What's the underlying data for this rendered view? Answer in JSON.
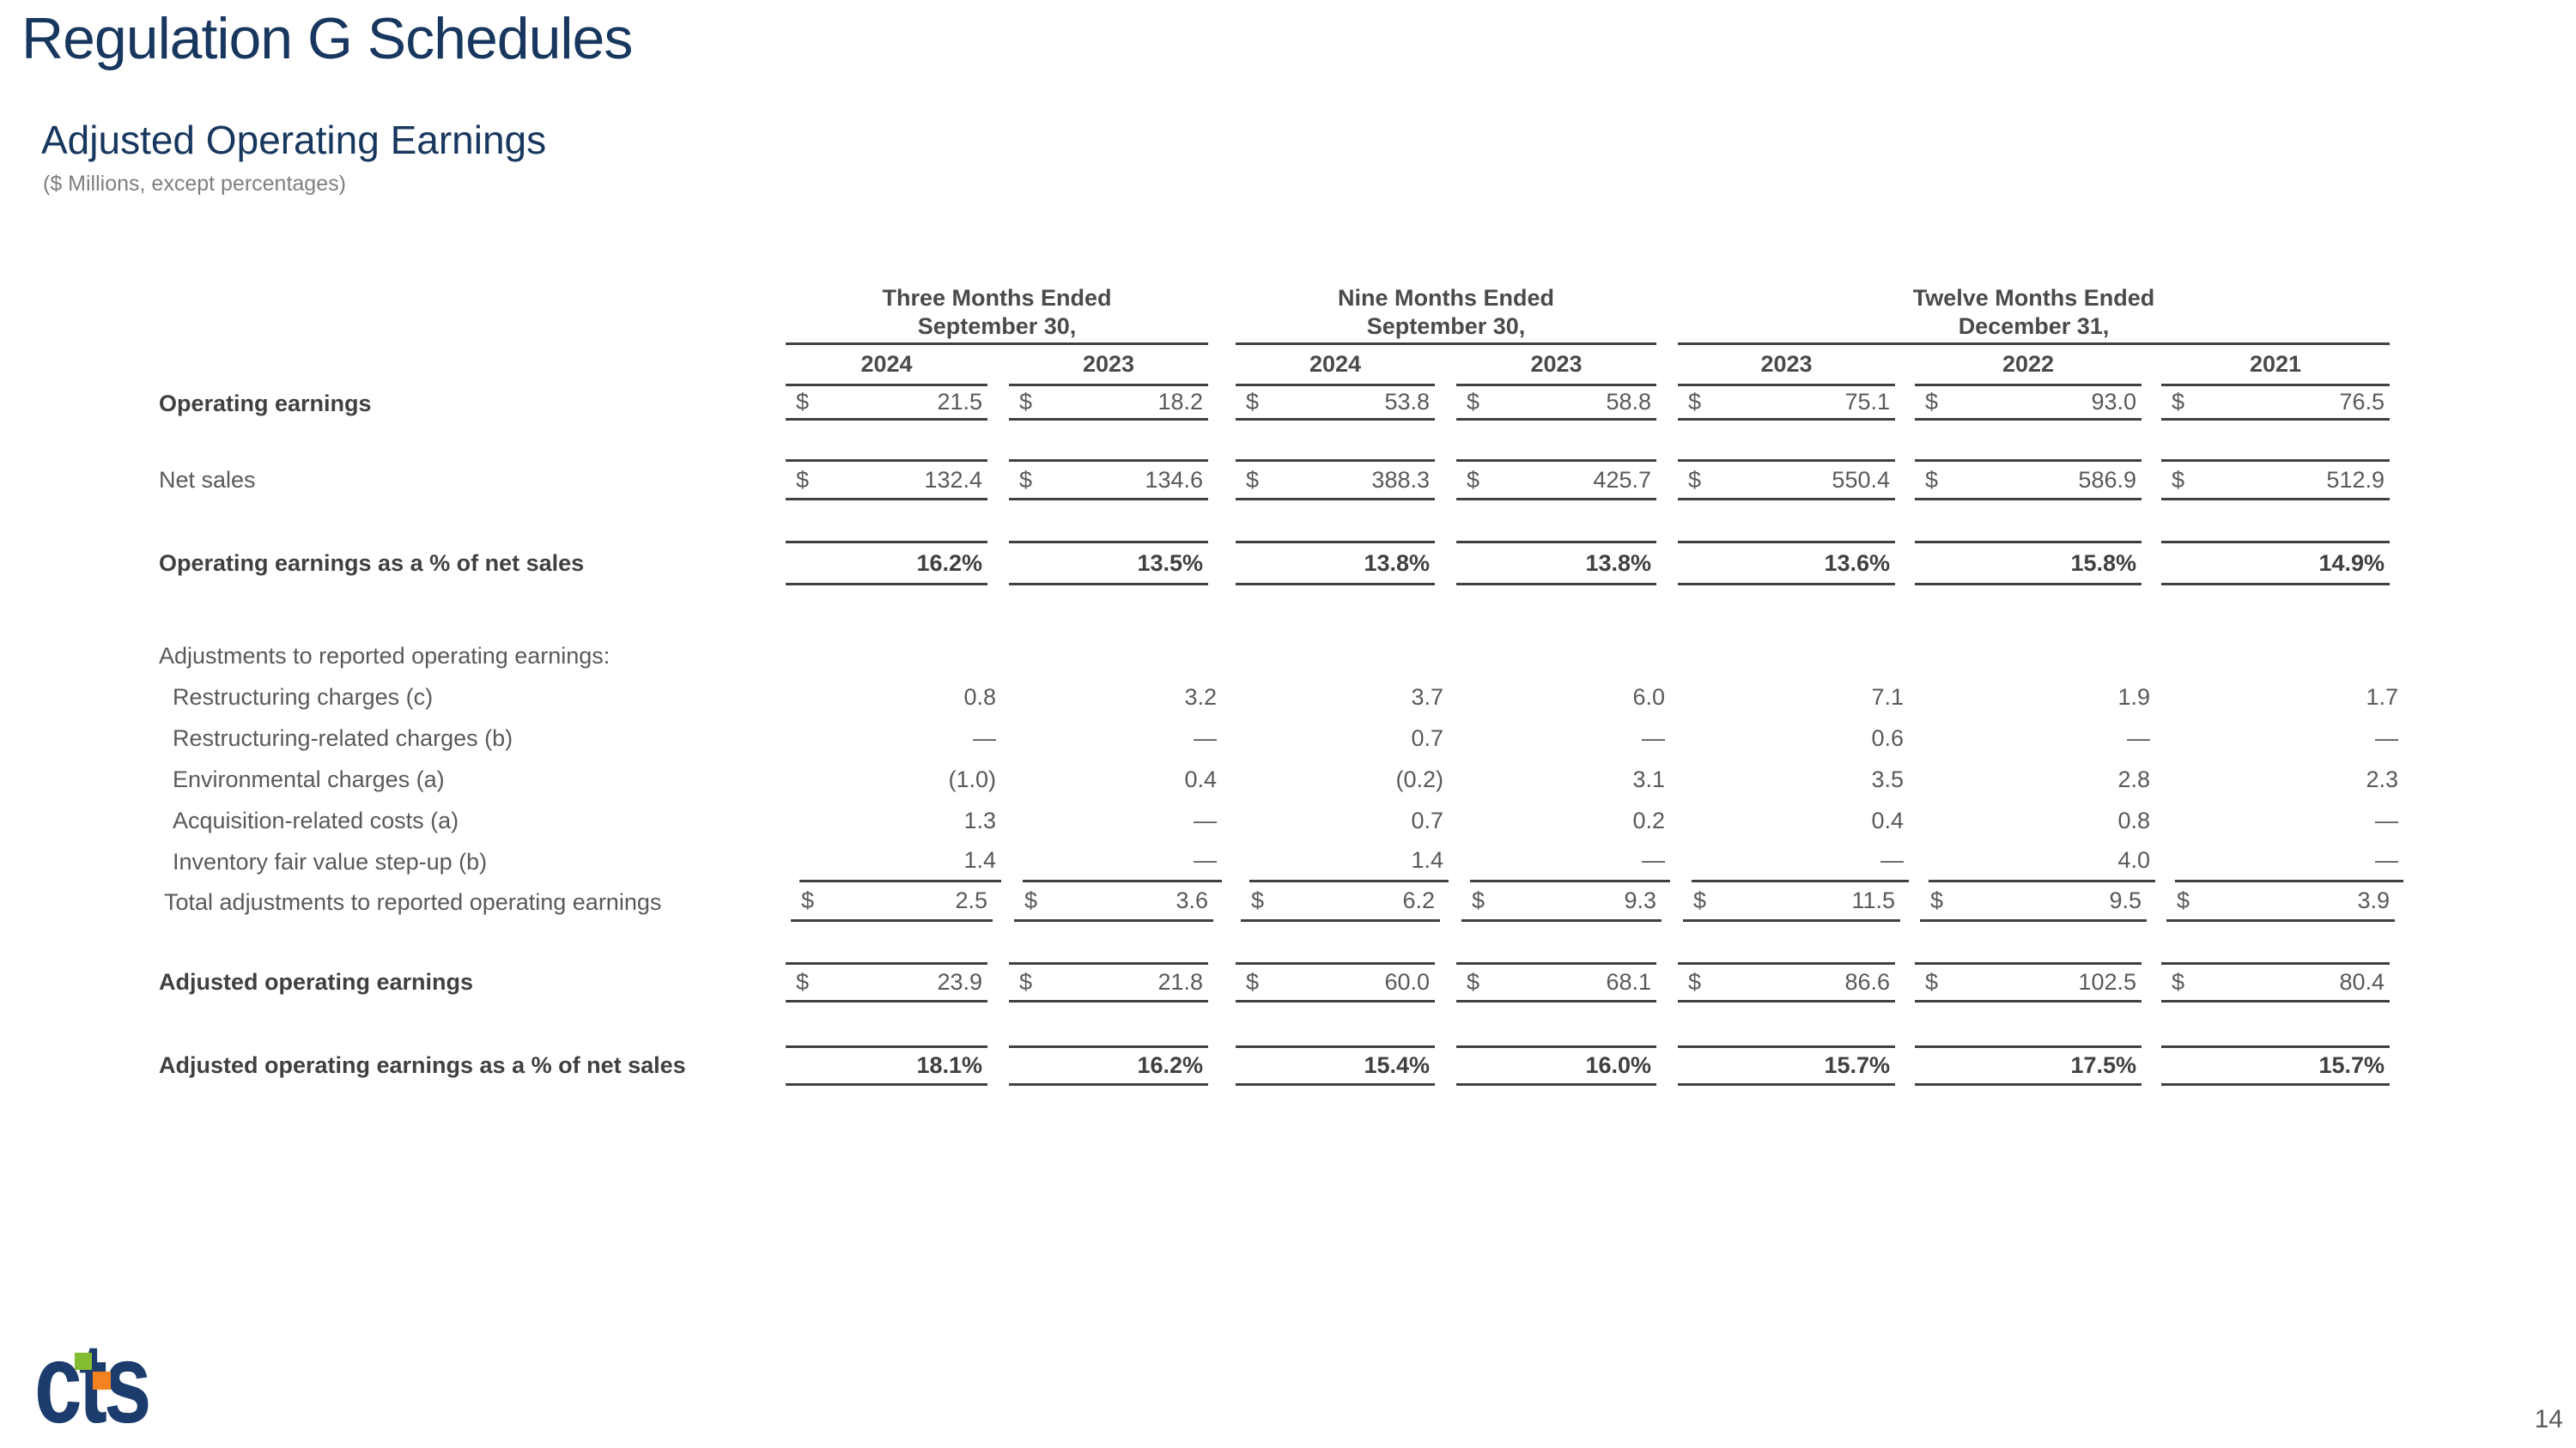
{
  "slide": {
    "title": "Regulation G Schedules",
    "subtitle": "Adjusted Operating Earnings",
    "units_note": "($ Millions, except percentages)",
    "page_number": "14"
  },
  "logo": {
    "text": "cts",
    "navy": "#1B3C6C",
    "green": "#84BD32",
    "orange": "#F58220"
  },
  "table": {
    "currency": "$",
    "column_groups": [
      {
        "line1": "Three Months Ended",
        "line2": "September 30,",
        "years": [
          "2024",
          "2023"
        ]
      },
      {
        "line1": "Nine Months Ended",
        "line2": "September 30,",
        "years": [
          "2024",
          "2023"
        ]
      },
      {
        "line1": "Twelve Months Ended",
        "line2": "December 31,",
        "years": [
          "2023",
          "2022",
          "2021"
        ]
      }
    ],
    "rows": [
      {
        "label": "Operating earnings",
        "values": [
          "21.5",
          "18.2",
          "53.8",
          "58.8",
          "75.1",
          "93.0",
          "76.5"
        ]
      },
      {
        "label": "Net sales",
        "values": [
          "132.4",
          "134.6",
          "388.3",
          "425.7",
          "550.4",
          "586.9",
          "512.9"
        ]
      },
      {
        "label": "Operating earnings as a % of net sales",
        "values": [
          "16.2%",
          "13.5%",
          "13.8%",
          "13.8%",
          "13.6%",
          "15.8%",
          "14.9%"
        ]
      },
      {
        "label": "Adjustments to reported operating earnings:",
        "values": []
      },
      {
        "label": "Restructuring charges (c)",
        "values": [
          "0.8",
          "3.2",
          "3.7",
          "6.0",
          "7.1",
          "1.9",
          "1.7"
        ]
      },
      {
        "label": "Restructuring-related charges (b)",
        "values": [
          "—",
          "—",
          "0.7",
          "—",
          "0.6",
          "—",
          "—"
        ]
      },
      {
        "label": "Environmental charges (a)",
        "values": [
          "(1.0)",
          "0.4",
          "(0.2)",
          "3.1",
          "3.5",
          "2.8",
          "2.3"
        ]
      },
      {
        "label": "Acquisition-related costs (a)",
        "values": [
          "1.3",
          "—",
          "0.7",
          "0.2",
          "0.4",
          "0.8",
          "—"
        ]
      },
      {
        "label": "Inventory fair value step-up (b)",
        "values": [
          "1.4",
          "—",
          "1.4",
          "—",
          "—",
          "4.0",
          "—"
        ]
      },
      {
        "label": "Total adjustments to reported operating earnings",
        "values": [
          "2.5",
          "3.6",
          "6.2",
          "9.3",
          "11.5",
          "9.5",
          "3.9"
        ]
      },
      {
        "label": "Adjusted operating earnings",
        "values": [
          "23.9",
          "21.8",
          "60.0",
          "68.1",
          "86.6",
          "102.5",
          "80.4"
        ]
      },
      {
        "label": "Adjusted operating earnings as a % of net sales",
        "values": [
          "18.1%",
          "16.2%",
          "15.4%",
          "16.0%",
          "15.7%",
          "17.5%",
          "15.7%"
        ]
      }
    ]
  }
}
